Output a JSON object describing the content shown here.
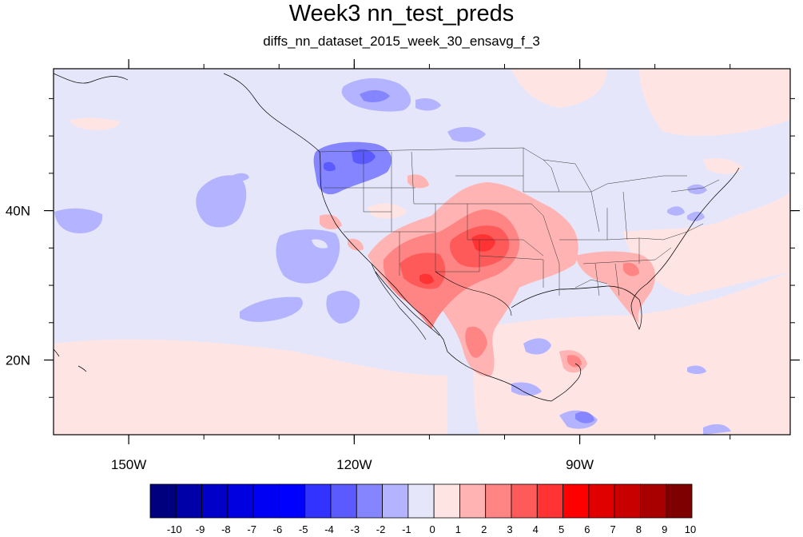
{
  "title": "Week3 nn_test_preds",
  "subtitle": "diffs_nn_dataset_2015_week_30_ensavg_f_3",
  "map": {
    "lon_range": [
      -160,
      -62
    ],
    "lat_range": [
      10,
      59
    ],
    "x_ticks": [
      {
        "lon": -150,
        "label": "150W"
      },
      {
        "lon": -120,
        "label": "120W"
      },
      {
        "lon": -90,
        "label": "90W"
      }
    ],
    "y_ticks": [
      {
        "lat": 20,
        "label": "20N"
      },
      {
        "lat": 40,
        "label": "40N"
      }
    ],
    "background_color": "#e6e6fa"
  },
  "colorbar": {
    "labels": [
      "-10",
      "-9",
      "-8",
      "-7",
      "-6",
      "-5",
      "-4",
      "-3",
      "-2",
      "-1",
      "0",
      "1",
      "2",
      "3",
      "4",
      "5",
      "6",
      "7",
      "8",
      "9",
      "10"
    ],
    "colors": [
      "#00007f",
      "#0000a8",
      "#0000c8",
      "#0000e0",
      "#0000f5",
      "#0000ff",
      "#3333ff",
      "#5a5aff",
      "#8585ff",
      "#b3b3ff",
      "#e6e6fa",
      "#ffe4e4",
      "#ffb3b3",
      "#ff8585",
      "#ff5a5a",
      "#ff3333",
      "#ff0000",
      "#e00000",
      "#c80000",
      "#a80000",
      "#7f0000"
    ]
  }
}
